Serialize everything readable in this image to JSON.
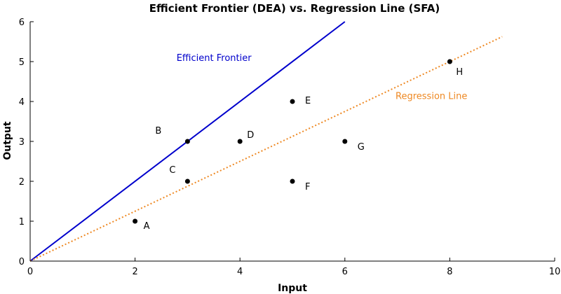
{
  "chart_data": {
    "type": "scatter",
    "title": "Efficient Frontier (DEA) vs. Regression Line (SFA)",
    "xlabel": "Input",
    "ylabel": "Output",
    "xlim": [
      0,
      10
    ],
    "ylim": [
      0,
      6
    ],
    "xticks": [
      0,
      2,
      4,
      6,
      8,
      10
    ],
    "yticks": [
      0,
      1,
      2,
      3,
      4,
      5,
      6
    ],
    "grid": false,
    "points": [
      {
        "label": "A",
        "x": 2,
        "y": 1
      },
      {
        "label": "B",
        "x": 3,
        "y": 3
      },
      {
        "label": "C",
        "x": 3,
        "y": 2
      },
      {
        "label": "D",
        "x": 4,
        "y": 3
      },
      {
        "label": "E",
        "x": 5,
        "y": 4
      },
      {
        "label": "F",
        "x": 5,
        "y": 2
      },
      {
        "label": "G",
        "x": 6,
        "y": 3
      },
      {
        "label": "H",
        "x": 8,
        "y": 5
      }
    ],
    "lines": [
      {
        "name": "Efficient Frontier",
        "style": "solid",
        "color": "#0000cc",
        "x": [
          0,
          6
        ],
        "y": [
          0,
          6
        ]
      },
      {
        "name": "Regression Line",
        "style": "dotted",
        "color": "#ee8822",
        "x": [
          0,
          9
        ],
        "y": [
          0,
          5.625
        ]
      }
    ]
  }
}
